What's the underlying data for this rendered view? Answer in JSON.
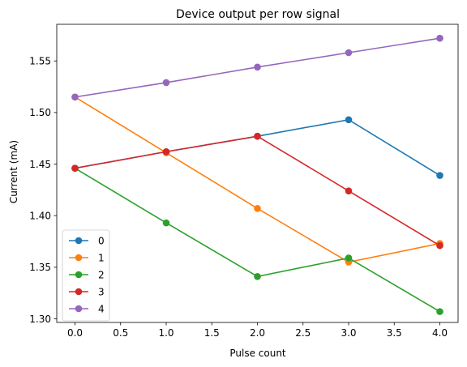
{
  "chart_data": {
    "type": "line",
    "title": "Device output per row signal",
    "xlabel": "Pulse count",
    "ylabel": "Current (mA)",
    "x": [
      0,
      1,
      2,
      3,
      4
    ],
    "xlim": [
      -0.2,
      4.2
    ],
    "ylim": [
      1.2965,
      1.5855
    ],
    "xticks": [
      0.0,
      0.5,
      1.0,
      1.5,
      2.0,
      2.5,
      3.0,
      3.5,
      4.0
    ],
    "xtick_labels": [
      "0.0",
      "0.5",
      "1.0",
      "1.5",
      "2.0",
      "2.5",
      "3.0",
      "3.5",
      "4.0"
    ],
    "yticks": [
      1.3,
      1.35,
      1.4,
      1.45,
      1.5,
      1.55
    ],
    "ytick_labels": [
      "1.30",
      "1.35",
      "1.40",
      "1.45",
      "1.50",
      "1.55"
    ],
    "grid": false,
    "legend_position": "lower-left",
    "marker": "circle",
    "series": [
      {
        "name": "0",
        "color": "#1f77b4",
        "values": [
          1.446,
          1.462,
          1.477,
          1.493,
          1.439
        ]
      },
      {
        "name": "1",
        "color": "#ff7f0e",
        "values": [
          1.515,
          1.461,
          1.407,
          1.355,
          1.373
        ]
      },
      {
        "name": "2",
        "color": "#2ca02c",
        "values": [
          1.446,
          1.393,
          1.341,
          1.359,
          1.307
        ]
      },
      {
        "name": "3",
        "color": "#d62728",
        "values": [
          1.446,
          1.462,
          1.477,
          1.424,
          1.371
        ]
      },
      {
        "name": "4",
        "color": "#9467bd",
        "values": [
          1.515,
          1.529,
          1.544,
          1.558,
          1.572
        ]
      }
    ]
  }
}
